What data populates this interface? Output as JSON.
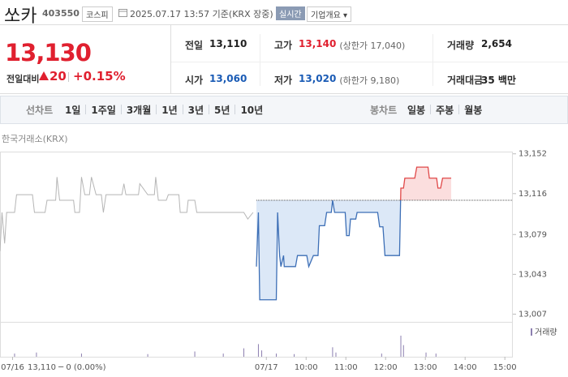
{
  "header": {
    "name": "쏘카",
    "code": "403550",
    "market": "코스피",
    "datetime": "2025.07.17 13:57 기준(KRX 장중)",
    "realtime": "실시간",
    "overview": "기업개요"
  },
  "price": {
    "current": "13,130",
    "change_label": "전일대비",
    "change": "20",
    "percent": "+0.15%"
  },
  "summary": {
    "rows": [
      [
        {
          "label": "전일",
          "value": "13,110"
        },
        {
          "label": "고가",
          "value": "13,140",
          "note": "(상한가 17,040)"
        },
        {
          "label": "거래량",
          "value": "2,654"
        }
      ],
      [
        {
          "label": "시가",
          "value": "13,060"
        },
        {
          "label": "저가",
          "value": "13,020",
          "note": "(하한가 9,180)"
        },
        {
          "label": "거래대금",
          "value": "35 백만"
        }
      ]
    ]
  },
  "tabs": {
    "line_label": "선차트",
    "line_periods": [
      "1일",
      "1주일",
      "3개월",
      "1년",
      "3년",
      "5년",
      "10년"
    ],
    "candle_label": "봉차트",
    "candle_periods": [
      "일봉",
      "주봉",
      "월봉"
    ]
  },
  "chart_data": {
    "type": "line",
    "source": "한국거래소(KRX)",
    "prev_summary": "13,110 ─ 0 (0.00%)",
    "xlim": [
      -402,
      372
    ],
    "ylim": [
      13000,
      13154
    ],
    "xticks": [
      {
        "value": -383,
        "label": "07/16"
      },
      {
        "value": 0,
        "label": "07/17"
      },
      {
        "value": 60,
        "label": "10:00"
      },
      {
        "value": 120,
        "label": "11:00"
      },
      {
        "value": 180,
        "label": "12:00"
      },
      {
        "value": 240,
        "label": "13:00"
      },
      {
        "value": 300,
        "label": "14:00"
      },
      {
        "value": 360,
        "label": "15:00"
      }
    ],
    "yticks": [
      {
        "value": 13152,
        "label": "13,152"
      },
      {
        "value": 13116,
        "label": "13,116"
      },
      {
        "value": 13079,
        "label": "13,079"
      },
      {
        "value": 13043,
        "label": "13,043"
      },
      {
        "value": 13007,
        "label": "13,007"
      }
    ],
    "reference": 13110,
    "series": [
      {
        "color": "#b5b5b5",
        "x": [
          -402,
          -399,
          -395,
          -392,
          -380,
          -377,
          -353,
          -350,
          -334,
          -331,
          -318,
          -316,
          -312,
          -291,
          -289,
          -282,
          -279,
          -274,
          -267,
          -264,
          -257,
          -249,
          -246,
          -242,
          -218,
          -215,
          -212,
          -193,
          -191,
          -179,
          -169,
          -167,
          -163,
          -151,
          -148,
          -132,
          -130,
          -120,
          -118,
          -108,
          -105,
          -34,
          -28,
          -20
        ],
        "values": [
          13064,
          13099,
          13071,
          13099,
          13099,
          13115,
          13115,
          13099,
          13099,
          13110,
          13110,
          13131,
          13110,
          13110,
          13099,
          13099,
          13131,
          13115,
          13115,
          13131,
          13115,
          13115,
          13099,
          13115,
          13115,
          13125,
          13115,
          13115,
          13125,
          13115,
          13115,
          13131,
          13110,
          13110,
          13115,
          13115,
          13099,
          13099,
          13110,
          13110,
          13099,
          13099,
          13093,
          13099
        ]
      },
      {
        "color": "#3d6fb6",
        "up_color": "#e04848",
        "fill": "#dce8f7",
        "up_fill": "#fbdede",
        "x": [
          -15,
          -12,
          -10,
          15,
          17,
          20,
          22,
          26,
          27,
          44,
          47,
          61,
          64,
          71,
          78,
          80,
          88,
          91,
          98,
          100,
          103,
          119,
          121,
          125,
          127,
          135,
          137,
          168,
          171,
          176,
          179,
          201,
          203,
          207,
          209,
          224,
          227,
          244,
          246,
          257,
          259,
          263,
          266,
          279
        ],
        "values": [
          13050,
          13099,
          13020,
          13020,
          13099,
          13060,
          13050,
          13060,
          13050,
          13050,
          13060,
          13060,
          13050,
          13060,
          13060,
          13087,
          13087,
          13099,
          13099,
          13110,
          13099,
          13099,
          13078,
          13078,
          13093,
          13093,
          13099,
          13099,
          13086,
          13086,
          13060,
          13060,
          13121,
          13121,
          13130,
          13130,
          13140,
          13140,
          13130,
          13130,
          13121,
          13121,
          13130,
          13130
        ]
      }
    ],
    "volume": {
      "name": "거래량",
      "color": "#8c7fb0",
      "y2lim": [
        0,
        300
      ],
      "x": [
        -380,
        -347,
        -279,
        -179,
        -108,
        -65,
        -34,
        -12,
        -7,
        15,
        42,
        100,
        105,
        174,
        203,
        207,
        241,
        256
      ],
      "values": [
        30,
        40,
        30,
        25,
        50,
        30,
        80,
        120,
        60,
        30,
        25,
        90,
        40,
        30,
        200,
        110,
        40,
        30
      ]
    }
  }
}
